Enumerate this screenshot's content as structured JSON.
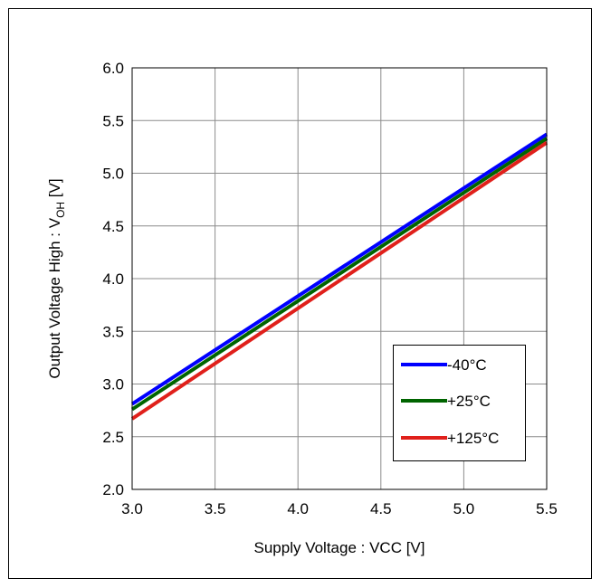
{
  "chart_data": {
    "type": "line",
    "title": "",
    "xlabel": "Supply Voltage : VCC [V]",
    "ylabel": {
      "main": "Output Voltage High : V",
      "sub": "OH",
      "unit": " [V]"
    },
    "xlim": [
      3.0,
      5.5
    ],
    "ylim": [
      2.0,
      6.0
    ],
    "x_ticks": [
      "3.0",
      "3.5",
      "4.0",
      "4.5",
      "5.0",
      "5.5"
    ],
    "y_ticks": [
      "2.0",
      "2.5",
      "3.0",
      "3.5",
      "4.0",
      "4.5",
      "5.0",
      "5.5",
      "6.0"
    ],
    "grid": true,
    "legend_position": "bottom-right",
    "series": [
      {
        "name": "-40°C",
        "color": "#0000ff",
        "x": [
          3.0,
          5.5
        ],
        "y": [
          2.81,
          5.37
        ]
      },
      {
        "name": "+25°C",
        "color": "#006400",
        "x": [
          3.0,
          5.5
        ],
        "y": [
          2.76,
          5.33
        ]
      },
      {
        "name": "+125°C",
        "color": "#e0201b",
        "x": [
          3.0,
          5.5
        ],
        "y": [
          2.67,
          5.29
        ]
      }
    ]
  }
}
